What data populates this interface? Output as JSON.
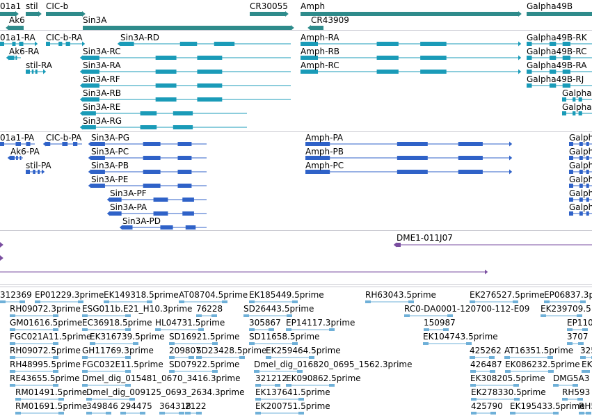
{
  "colors": {
    "gene": "#2e8b8b",
    "transcript": "#1a9bb8",
    "protein": "#2f62c8",
    "other": "#7a4ea0",
    "est": "#6fb0d8",
    "separator": "#c8c8d0"
  },
  "genes": [
    {
      "label": "01a1"
    },
    {
      "label": "stil"
    },
    {
      "label": "CIC-b"
    },
    {
      "label": "CR30055"
    },
    {
      "label": "Amph"
    },
    {
      "label": "Galpha49B"
    },
    {
      "label": "Ak6"
    },
    {
      "label": "Sin3A"
    },
    {
      "label": "CR43909"
    }
  ],
  "transcripts": [
    {
      "label": "01a1-RA"
    },
    {
      "label": "CIC-b-RA"
    },
    {
      "label": "Sin3A-RD"
    },
    {
      "label": "Amph-RA"
    },
    {
      "label": "Galpha49B-RK"
    },
    {
      "label": "Ak6-RA"
    },
    {
      "label": "Sin3A-RC"
    },
    {
      "label": "Amph-RB"
    },
    {
      "label": "Galpha49B-RC"
    },
    {
      "label": "stil-RA"
    },
    {
      "label": "Sin3A-RA"
    },
    {
      "label": "Amph-RC"
    },
    {
      "label": "Galpha49B-RA"
    },
    {
      "label": "Sin3A-RF"
    },
    {
      "label": "Galpha49B-RJ"
    },
    {
      "label": "Sin3A-RB"
    },
    {
      "label": "Galpha"
    },
    {
      "label": "Sin3A-RE"
    },
    {
      "label": "Galpha"
    },
    {
      "label": "Sin3A-RG"
    }
  ],
  "proteins": [
    {
      "label": "01a1-PA"
    },
    {
      "label": "CIC-b-PA"
    },
    {
      "label": "Sin3A-PG"
    },
    {
      "label": "Amph-PA"
    },
    {
      "label": "Galph"
    },
    {
      "label": "Ak6-PA"
    },
    {
      "label": "Sin3A-PC"
    },
    {
      "label": "Amph-PB"
    },
    {
      "label": "Galph"
    },
    {
      "label": "stil-PA"
    },
    {
      "label": "Sin3A-PB"
    },
    {
      "label": "Amph-PC"
    },
    {
      "label": "Galph"
    },
    {
      "label": "Sin3A-PE"
    },
    {
      "label": "Galph"
    },
    {
      "label": "Sin3A-PF"
    },
    {
      "label": "Galph"
    },
    {
      "label": "Sin3A-PA"
    },
    {
      "label": "Galph"
    },
    {
      "label": "Sin3A-PD"
    }
  ],
  "other_features": [
    {
      "label": "DME1-011J07"
    }
  ],
  "ests": [
    "312369",
    "EP01229.3prime",
    "EK149318.5prime",
    "AT08704.5prime",
    "EK185449.5prime",
    "RH63043.5prime",
    "EK276527.5prime",
    "EP06837.3p",
    "RH09072.3prime",
    "ESG011b.E21_H10.3prime",
    "76228",
    "SD26443.5prime",
    "RC0-DA0001-120700-112-E09",
    "EK239709.5",
    "GM01616.5prime",
    "EC36918.5prime",
    "HL04731.5prime",
    "305867",
    "EP14117.3prime",
    "150987",
    "EP110",
    "FGC021A11.5prime",
    "EK316739.5prime",
    "SD16921.5prime",
    "SD11658.5prime",
    "EK104743.5prime",
    "3707",
    "RH09072.5prime",
    "GH11769.3prime",
    "209807",
    "SD23428.5prime",
    "EK259464.5prime",
    "425262",
    "AT16351.5prime",
    "3257",
    "RH48995.5prime",
    "FGC032E11.5prime",
    "SD07922.5prime",
    "Dmel_dig_016820_0695_1562.3prime",
    "426487",
    "EK086232.5prime",
    "EK",
    "RE43655.5prime",
    "Dmel_dig_015481_0670_3416.3prime",
    "321212",
    "EK090862.5prime",
    "EK308205.5prime",
    "DMG5A3",
    "RM01491.5prime",
    "Dmel_dig_009125_0693_2634.3prime",
    "EK137641.5prime",
    "EK278330.5prime",
    "RH593",
    "RM01691.5prime",
    "349846",
    "294475",
    "364318",
    "2122",
    "EK200751.5prime",
    "425790",
    "EK195433.5prime",
    "RH5"
  ]
}
